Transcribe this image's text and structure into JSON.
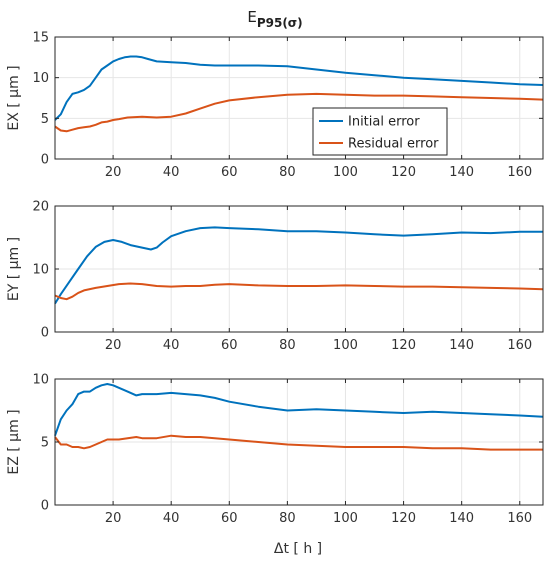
{
  "chart_data": {
    "type": "line",
    "title": "E",
    "title_subscript": "P95(σ)",
    "xlabel": "Δt [ h ]",
    "x_ticks": [
      "20",
      "40",
      "60",
      "80",
      "100",
      "120",
      "140",
      "160"
    ],
    "xlim": [
      0,
      168
    ],
    "grid": true,
    "legend": {
      "placement": "center (in top panel)",
      "entries": [
        "Initial error",
        "Residual error"
      ]
    },
    "colors": {
      "Initial error": "#0072BD",
      "Residual error": "#D95319"
    },
    "panels": [
      {
        "ylabel": "EX [ μm ]",
        "ylim": [
          0,
          15
        ],
        "y_ticks": [
          "0",
          "5",
          "10",
          "15"
        ],
        "series": [
          {
            "name": "Initial error",
            "x": [
              0,
              2,
              4,
              6,
              8,
              10,
              12,
              14,
              16,
              18,
              20,
              22,
              24,
              26,
              28,
              30,
              32,
              35,
              40,
              45,
              50,
              55,
              60,
              70,
              80,
              90,
              100,
              110,
              120,
              130,
              140,
              150,
              160,
              168
            ],
            "y": [
              4.8,
              5.5,
              7.0,
              8.0,
              8.2,
              8.5,
              9.0,
              10.0,
              11.0,
              11.5,
              12.0,
              12.3,
              12.5,
              12.6,
              12.6,
              12.5,
              12.3,
              12.0,
              11.9,
              11.8,
              11.6,
              11.5,
              11.5,
              11.5,
              11.4,
              11.0,
              10.6,
              10.3,
              10.0,
              9.8,
              9.6,
              9.4,
              9.2,
              9.1
            ]
          },
          {
            "name": "Residual error",
            "x": [
              0,
              2,
              4,
              6,
              8,
              10,
              12,
              14,
              16,
              18,
              20,
              22,
              25,
              30,
              35,
              40,
              45,
              50,
              55,
              60,
              70,
              80,
              90,
              100,
              110,
              120,
              130,
              140,
              150,
              160,
              168
            ],
            "y": [
              4.0,
              3.5,
              3.4,
              3.6,
              3.8,
              3.9,
              4.0,
              4.2,
              4.5,
              4.6,
              4.8,
              4.9,
              5.1,
              5.2,
              5.1,
              5.2,
              5.6,
              6.2,
              6.8,
              7.2,
              7.6,
              7.9,
              8.0,
              7.9,
              7.8,
              7.8,
              7.7,
              7.6,
              7.5,
              7.4,
              7.3
            ]
          }
        ]
      },
      {
        "ylabel": "EY [ μm ]",
        "ylim": [
          0,
          20
        ],
        "y_ticks": [
          "0",
          "10",
          "20"
        ],
        "series": [
          {
            "name": "Initial error",
            "x": [
              0,
              2,
              5,
              8,
              11,
              14,
              17,
              20,
              23,
              26,
              30,
              33,
              35,
              37,
              40,
              45,
              50,
              55,
              60,
              70,
              80,
              90,
              100,
              110,
              120,
              130,
              140,
              150,
              160,
              168
            ],
            "y": [
              4.5,
              6.0,
              8.0,
              10.0,
              12.0,
              13.5,
              14.3,
              14.6,
              14.3,
              13.8,
              13.4,
              13.1,
              13.4,
              14.2,
              15.2,
              16.0,
              16.5,
              16.6,
              16.5,
              16.3,
              16.0,
              16.0,
              15.8,
              15.5,
              15.3,
              15.5,
              15.8,
              15.7,
              15.9,
              15.9
            ]
          },
          {
            "name": "Residual error",
            "x": [
              0,
              2,
              4,
              6,
              8,
              10,
              14,
              18,
              22,
              26,
              30,
              35,
              40,
              45,
              50,
              55,
              60,
              70,
              80,
              90,
              100,
              110,
              120,
              130,
              140,
              150,
              160,
              168
            ],
            "y": [
              5.8,
              5.4,
              5.2,
              5.6,
              6.2,
              6.6,
              7.0,
              7.3,
              7.6,
              7.7,
              7.6,
              7.3,
              7.2,
              7.3,
              7.3,
              7.5,
              7.6,
              7.4,
              7.3,
              7.3,
              7.4,
              7.3,
              7.2,
              7.2,
              7.1,
              7.0,
              6.9,
              6.8
            ]
          }
        ]
      },
      {
        "ylabel": "EZ [ μm ]",
        "ylim": [
          0,
          10
        ],
        "y_ticks": [
          "0",
          "5",
          "10"
        ],
        "series": [
          {
            "name": "Initial error",
            "x": [
              0,
              2,
              4,
              6,
              8,
              10,
              12,
              14,
              16,
              18,
              20,
              22,
              25,
              28,
              30,
              35,
              40,
              45,
              50,
              55,
              60,
              70,
              80,
              90,
              100,
              110,
              120,
              130,
              140,
              150,
              160,
              168
            ],
            "y": [
              5.5,
              6.8,
              7.5,
              8.0,
              8.8,
              9.0,
              9.0,
              9.3,
              9.5,
              9.6,
              9.5,
              9.3,
              9.0,
              8.7,
              8.8,
              8.8,
              8.9,
              8.8,
              8.7,
              8.5,
              8.2,
              7.8,
              7.5,
              7.6,
              7.5,
              7.4,
              7.3,
              7.4,
              7.3,
              7.2,
              7.1,
              7.0
            ]
          },
          {
            "name": "Residual error",
            "x": [
              0,
              2,
              4,
              6,
              8,
              10,
              12,
              14,
              16,
              18,
              20,
              22,
              25,
              28,
              30,
              35,
              40,
              45,
              50,
              55,
              60,
              70,
              80,
              90,
              100,
              110,
              120,
              130,
              140,
              150,
              160,
              168
            ],
            "y": [
              5.4,
              4.8,
              4.8,
              4.6,
              4.6,
              4.5,
              4.6,
              4.8,
              5.0,
              5.2,
              5.2,
              5.2,
              5.3,
              5.4,
              5.3,
              5.3,
              5.5,
              5.4,
              5.4,
              5.3,
              5.2,
              5.0,
              4.8,
              4.7,
              4.6,
              4.6,
              4.6,
              4.5,
              4.5,
              4.4,
              4.4,
              4.4
            ]
          }
        ]
      }
    ]
  }
}
